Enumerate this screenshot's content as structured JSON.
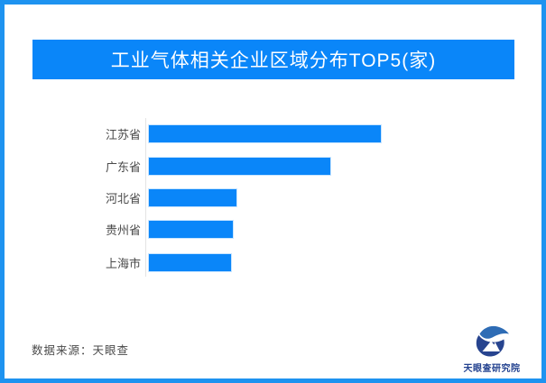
{
  "page": {
    "background_color": "#ffffff",
    "frame_border_color": "#1e93f0"
  },
  "header": {
    "title": "工业气体相关企业区域分布TOP5(家)",
    "banner_color": "#0a86f9",
    "title_text_color": "#ffffff"
  },
  "chart_data": {
    "type": "bar",
    "orientation": "horizontal",
    "title": "工业气体相关企业区域分布TOP5(家)",
    "categories": [
      "江苏省",
      "广东省",
      "河北省",
      "贵州省",
      "上海市"
    ],
    "values": [
      257,
      201,
      97,
      93,
      91
    ],
    "value_note": "no numeric data labels or value axis shown in image; values are estimated relative bar lengths in pixels",
    "bar_color": "#0a86f9",
    "axis_line_color": "#e4e4e4",
    "category_label_color": "#4a4a4a",
    "grid": false,
    "legend": false
  },
  "footer": {
    "source_label": "数据来源：天眼查",
    "logo_text": "天眼查研究院",
    "logo_colors": {
      "ball": "#27448f",
      "wing": "#2e6cb5",
      "text": "#22418f"
    }
  }
}
